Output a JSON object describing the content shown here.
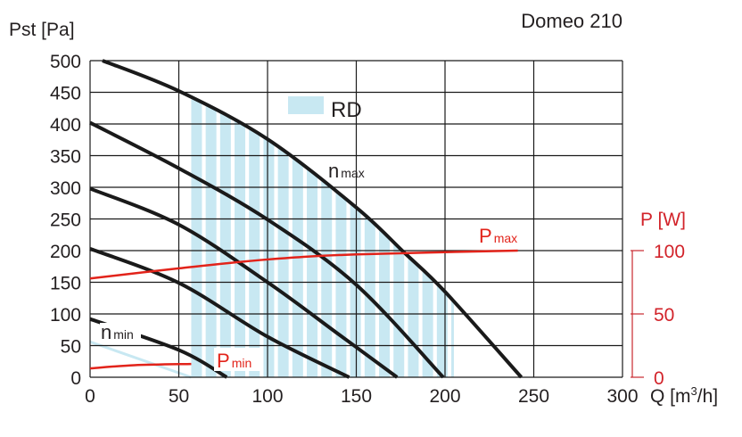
{
  "chart_data": {
    "type": "line",
    "title": "Domeo 210",
    "xlabel": "Q [m³/h]",
    "xlabel_parts": {
      "main": "Q [m",
      "sup": "3",
      "end": "/h]"
    },
    "ylabel": "Pst [Pa]",
    "y2label": "P [W]",
    "xlim": [
      0,
      300
    ],
    "ylim": [
      0,
      500
    ],
    "y2lim": [
      0,
      100
    ],
    "grid": true,
    "x_ticks": [
      "0",
      "50",
      "100",
      "150",
      "200",
      "250",
      "300"
    ],
    "y_ticks": [
      "0",
      "50",
      "100",
      "150",
      "200",
      "250",
      "300",
      "350",
      "400",
      "450",
      "500"
    ],
    "y2_ticks": [
      "0",
      "50",
      "100"
    ],
    "x_tick_values": [
      0,
      50,
      100,
      150,
      200,
      250,
      300
    ],
    "y_tick_values": [
      0,
      50,
      100,
      150,
      200,
      250,
      300,
      350,
      400,
      450,
      500
    ],
    "y2_tick_values": [
      0,
      50,
      100
    ],
    "series": [
      {
        "label": "n max",
        "axis": "left",
        "points": [
          [
            7,
            500
          ],
          [
            50,
            452
          ],
          [
            100,
            376
          ],
          [
            150,
            268
          ],
          [
            177,
            197
          ],
          [
            200,
            135
          ],
          [
            243,
            0
          ]
        ]
      },
      {
        "axis": "left",
        "points": [
          [
            0,
            402
          ],
          [
            50,
            330
          ],
          [
            100,
            249
          ],
          [
            150,
            146
          ],
          [
            199,
            0
          ]
        ]
      },
      {
        "axis": "left",
        "points": [
          [
            0,
            298
          ],
          [
            50,
            241
          ],
          [
            100,
            150
          ],
          [
            140,
            68
          ],
          [
            173,
            0
          ]
        ]
      },
      {
        "axis": "left",
        "points": [
          [
            0,
            203
          ],
          [
            50,
            149
          ],
          [
            100,
            64
          ],
          [
            146,
            0
          ]
        ]
      },
      {
        "label": "n min",
        "axis": "left",
        "points": [
          [
            0,
            92
          ],
          [
            50,
            43
          ],
          [
            77,
            0
          ]
        ]
      },
      {
        "label": "P max",
        "axis": "right",
        "points": [
          [
            0,
            78
          ],
          [
            50,
            86
          ],
          [
            100,
            93
          ],
          [
            150,
            97
          ],
          [
            241,
            100
          ]
        ]
      },
      {
        "label": "P min",
        "axis": "right",
        "points": [
          [
            0,
            7
          ],
          [
            25,
            9.5
          ],
          [
            57,
            10.5
          ]
        ]
      }
    ],
    "region": {
      "label": "RD",
      "q_range": [
        57,
        205
      ],
      "lower_edge": [
        [
          0,
          56
        ],
        [
          57,
          0
        ]
      ]
    },
    "labels": {
      "nmax": {
        "n": "n",
        "sub": "max"
      },
      "nmin": {
        "n": "n",
        "sub": "min"
      },
      "pmax": {
        "p": "P",
        "sub": "max"
      },
      "pmin": {
        "p": "P",
        "sub": "min"
      },
      "rd": "RD"
    },
    "colors": {
      "curve": "#1a1a1a",
      "power": "#e2231a",
      "region": "#c8e8f2",
      "grid": "#1a1a1a",
      "axis_right": "#c8282e"
    }
  }
}
